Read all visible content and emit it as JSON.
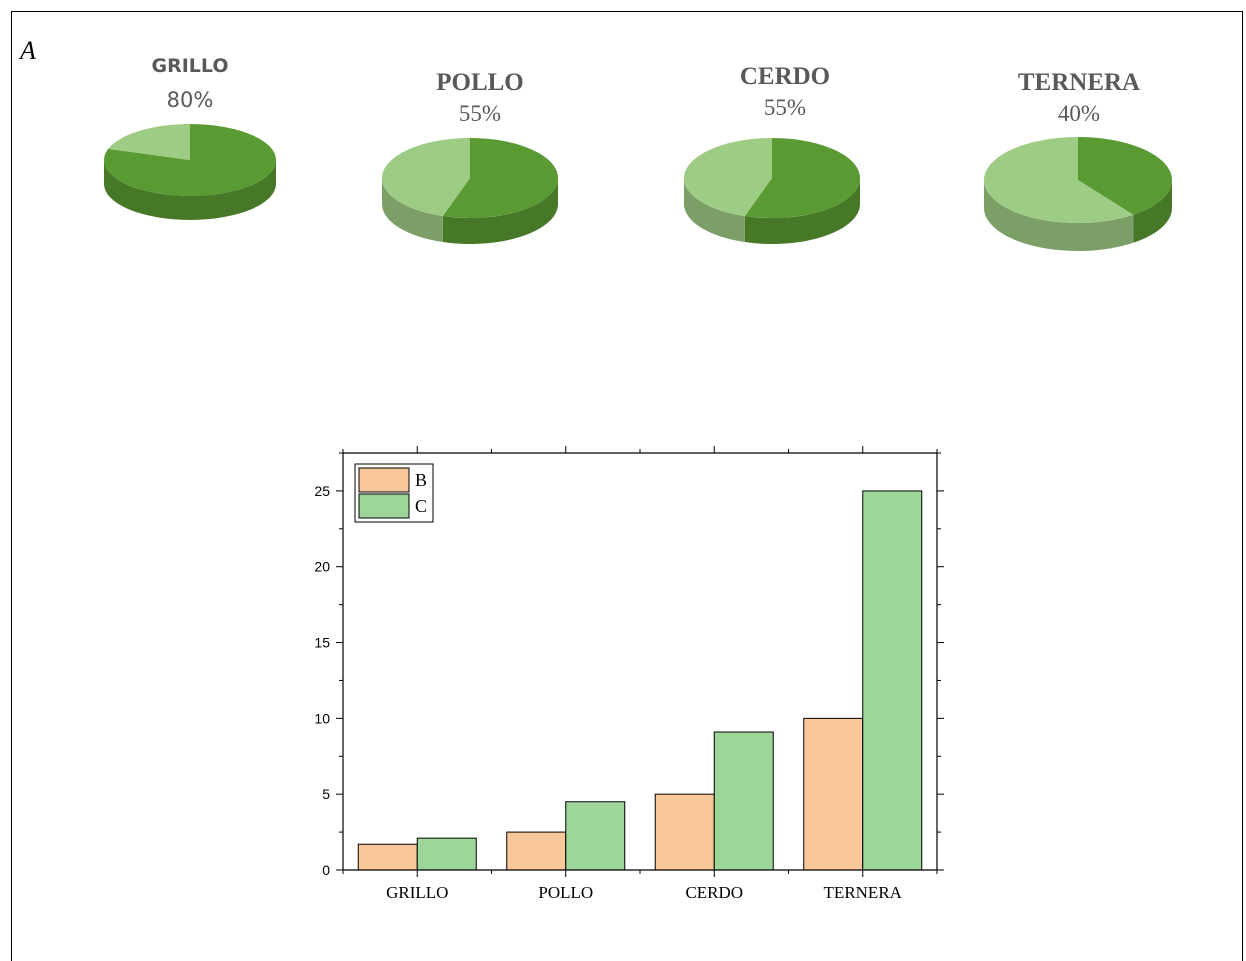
{
  "panel_label": "A",
  "chart_data": [
    {
      "type": "pie",
      "title": "GRILLO",
      "percent_label": "80%",
      "slices": [
        {
          "label": "main",
          "value": 80,
          "color": "#5a9a32"
        },
        {
          "label": "rest",
          "value": 20,
          "color": "#9fcc85"
        }
      ]
    },
    {
      "type": "pie",
      "title": "POLLO",
      "percent_label": "55%",
      "slices": [
        {
          "label": "main",
          "value": 55,
          "color": "#5a9a32"
        },
        {
          "label": "rest",
          "value": 45,
          "color": "#9fcc85"
        }
      ]
    },
    {
      "type": "pie",
      "title": "CERDO",
      "percent_label": "55%",
      "slices": [
        {
          "label": "main",
          "value": 55,
          "color": "#5a9a32"
        },
        {
          "label": "rest",
          "value": 45,
          "color": "#9fcc85"
        }
      ]
    },
    {
      "type": "pie",
      "title": "TERNERA",
      "percent_label": "40%",
      "slices": [
        {
          "label": "main",
          "value": 40,
          "color": "#5a9a32"
        },
        {
          "label": "rest",
          "value": 60,
          "color": "#9fcc85"
        }
      ]
    },
    {
      "type": "bar",
      "categories": [
        "GRILLO",
        "POLLO",
        "CERDO",
        "TERNERA"
      ],
      "series": [
        {
          "name": "B",
          "values": [
            1.7,
            2.5,
            5.0,
            10.0
          ],
          "color": "#f8c89a"
        },
        {
          "name": "C",
          "values": [
            2.1,
            4.5,
            9.1,
            25.0
          ],
          "color": "#9ed69a"
        }
      ],
      "ylim": [
        0,
        27.5
      ],
      "yticks": [
        0,
        5,
        10,
        15,
        20,
        25
      ],
      "legend": "top-left",
      "grid": false
    }
  ]
}
